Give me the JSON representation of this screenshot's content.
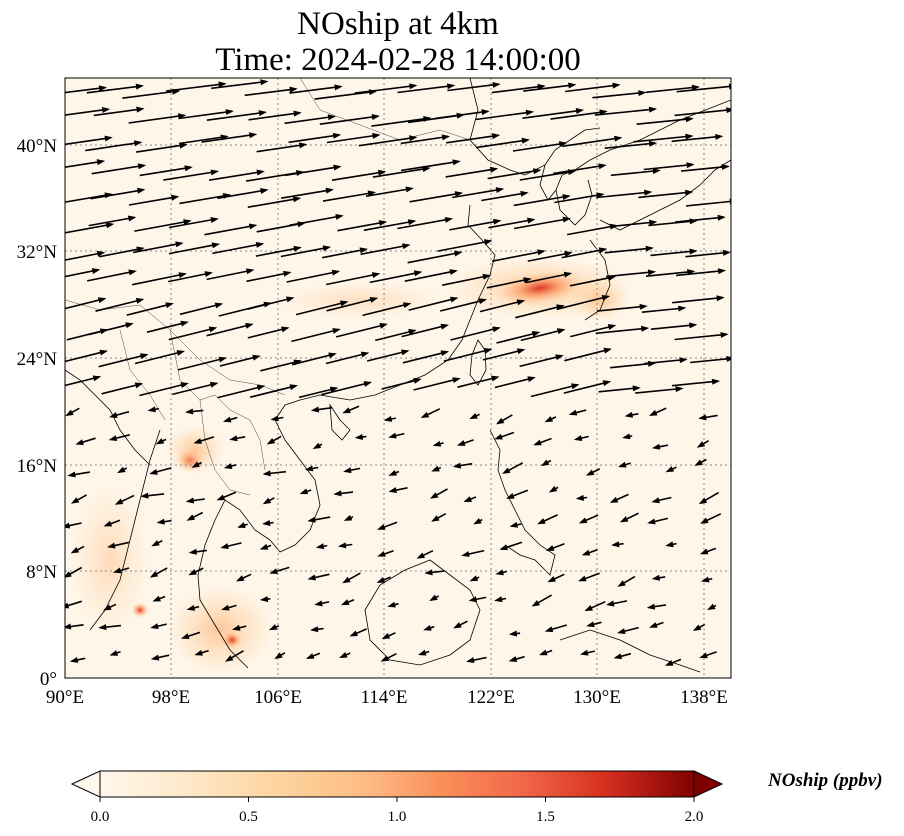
{
  "figure": {
    "title_line1": "NOship at 4km",
    "title_line2": "Time: 2024-02-28 14:00:00"
  },
  "map": {
    "lon_range": [
      90,
      140
    ],
    "lat_range": [
      0,
      45
    ],
    "lon_ticks": [
      "90°E",
      "98°E",
      "106°E",
      "114°E",
      "122°E",
      "130°E",
      "138°E"
    ],
    "lat_ticks": [
      "0°",
      "8°N",
      "16°N",
      "24°N",
      "32°N",
      "40°N"
    ],
    "gridlines": "dotted",
    "wind_vectors": "black arrows",
    "features": [
      "coastlines",
      "country borders"
    ]
  },
  "colorbar": {
    "label": "NOship (ppbv)",
    "range": [
      0.0,
      2.0
    ],
    "ticks": [
      "0.0",
      "0.5",
      "1.0",
      "1.5",
      "2.0"
    ],
    "colormap": "OrRd",
    "colors": [
      "#fff7ec",
      "#fdd49e",
      "#fc8d59",
      "#d7301f",
      "#7f0000"
    ],
    "extend": "both"
  }
}
